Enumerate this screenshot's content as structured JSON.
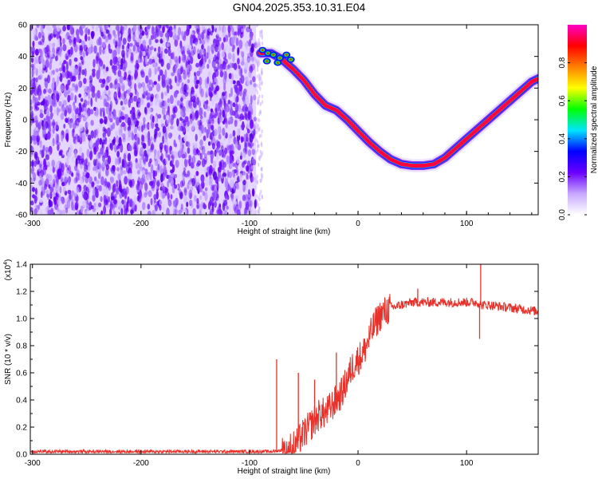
{
  "page_title": "GN04.2025.353.10.31.E04",
  "chart_data": [
    {
      "type": "heatmap",
      "title": "GN04.2025.353.10.31.E04",
      "xlabel": "Height of straight line (km)",
      "ylabel": "Frequency (Hz)",
      "xlim": [
        -302,
        166
      ],
      "ylim": [
        -60,
        60
      ],
      "x_ticks": [
        -300,
        -200,
        -100,
        0,
        100
      ],
      "x_tick_labels": [
        "-300",
        "-200",
        "-100",
        "0",
        "100"
      ],
      "y_ticks": [
        -60,
        -40,
        -20,
        0,
        20,
        40,
        60
      ],
      "y_tick_labels": [
        "-60",
        "-40",
        "-20",
        "0",
        "20",
        "40",
        "60"
      ],
      "ridge": {
        "x": [
          -90,
          -80,
          -70,
          -60,
          -50,
          -40,
          -30,
          -20,
          -10,
          0,
          10,
          20,
          30,
          40,
          50,
          60,
          70,
          80,
          90,
          100,
          110,
          120,
          130,
          140,
          150,
          160,
          166
        ],
        "y": [
          42,
          42,
          38,
          32,
          25,
          16,
          9,
          6,
          0,
          -7,
          -14,
          -20,
          -25,
          -28,
          -29,
          -29,
          -28,
          -24,
          -18,
          -12,
          -6,
          0,
          6,
          12,
          18,
          24,
          26
        ]
      },
      "noise_region_x": [
        -302,
        -94
      ],
      "colorbar": {
        "label": "Normalized spectral amplitude",
        "range": [
          0.0,
          1.0
        ],
        "ticks": [
          0.0,
          0.2,
          0.4,
          0.6,
          0.8
        ],
        "tick_labels": [
          "0.0",
          "0.2",
          "0.4",
          "0.6",
          "0.8"
        ],
        "colors": [
          "#ffffff",
          "#c7a8ff",
          "#6a00ff",
          "#0000ff",
          "#00e5ff",
          "#00ff00",
          "#ffff00",
          "#ff8000",
          "#ff0000",
          "#ff00c8"
        ]
      }
    },
    {
      "type": "line",
      "xlabel": "Height of straight line (km)",
      "ylabel": "SNR (10 * v/v)",
      "y_scale_label": "(x10",
      "y_scale_exponent": "4",
      "y_scale_suffix": ")",
      "xlim": [
        -302,
        166
      ],
      "ylim": [
        0.0,
        1.4
      ],
      "x_ticks": [
        -300,
        -200,
        -100,
        0,
        100
      ],
      "x_tick_labels": [
        "-300",
        "-200",
        "-100",
        "0",
        "100"
      ],
      "y_ticks": [
        0.0,
        0.2,
        0.4,
        0.6,
        0.8,
        1.0,
        1.2,
        1.4
      ],
      "y_tick_labels": [
        "0.0",
        "0.2",
        "0.4",
        "0.6",
        "0.8",
        "1.0",
        "1.2",
        "1.4"
      ],
      "series": [
        {
          "name": "SNR",
          "color": "#e8312a",
          "x": [
            -302,
            -280,
            -250,
            -200,
            -150,
            -110,
            -80,
            -70,
            -60,
            -55,
            -50,
            -45,
            -40,
            -35,
            -30,
            -25,
            -20,
            -15,
            -10,
            -5,
            0,
            5,
            10,
            15,
            20,
            25,
            30,
            40,
            50,
            60,
            70,
            80,
            90,
            100,
            110,
            113,
            115,
            120,
            130,
            140,
            150,
            160,
            166
          ],
          "y": [
            0.02,
            0.02,
            0.02,
            0.02,
            0.02,
            0.02,
            0.02,
            0.03,
            0.05,
            0.1,
            0.15,
            0.2,
            0.25,
            0.3,
            0.3,
            0.35,
            0.4,
            0.45,
            0.55,
            0.65,
            0.7,
            0.75,
            0.85,
            0.95,
            1.02,
            1.05,
            1.08,
            1.1,
            1.12,
            1.12,
            1.12,
            1.12,
            1.12,
            1.12,
            1.12,
            1.1,
            1.1,
            1.1,
            1.09,
            1.08,
            1.07,
            1.06,
            1.05
          ]
        }
      ],
      "spikes": [
        {
          "x": -75,
          "y": 0.7
        },
        {
          "x": -55,
          "y": 0.6
        },
        {
          "x": -40,
          "y": 0.55
        },
        {
          "x": -20,
          "y": 0.75
        },
        {
          "x": 55,
          "y": 1.22
        },
        {
          "x": 113,
          "y": 1.42
        },
        {
          "x": 112,
          "y": 0.85
        }
      ]
    }
  ]
}
